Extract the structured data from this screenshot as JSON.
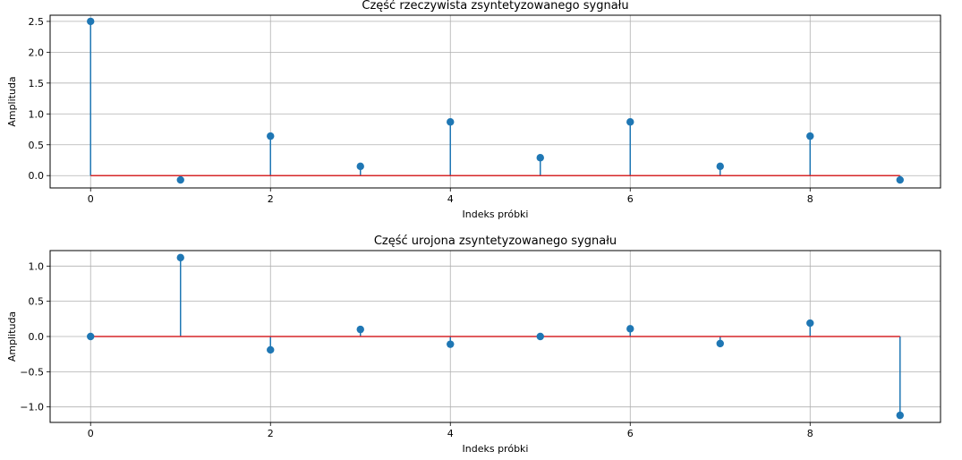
{
  "chart_data": [
    {
      "type": "stem",
      "title": "Część rzeczywista zsyntetyzowanego sygnału",
      "xlabel": "Indeks próbki",
      "ylabel": "Amplituda",
      "x": [
        0,
        1,
        2,
        3,
        4,
        5,
        6,
        7,
        8,
        9
      ],
      "values": [
        2.5,
        -0.07,
        0.64,
        0.15,
        0.87,
        0.29,
        0.87,
        0.15,
        0.64,
        -0.07
      ],
      "xlim": [
        -0.45,
        9.45
      ],
      "ylim": [
        -0.2,
        2.6
      ],
      "xticks": [
        0,
        2,
        4,
        6,
        8
      ],
      "xtick_labels": [
        "0",
        "2",
        "4",
        "6",
        "8"
      ],
      "yticks": [
        0.0,
        0.5,
        1.0,
        1.5,
        2.0,
        2.5
      ],
      "ytick_labels": [
        "0.0",
        "0.5",
        "1.0",
        "1.5",
        "2.0",
        "2.5"
      ],
      "grid": true,
      "colors": {
        "stem": "#1f77b4",
        "baseline": "#d62728"
      }
    },
    {
      "type": "stem",
      "title": "Część urojona zsyntetyzowanego sygnału",
      "xlabel": "Indeks próbki",
      "ylabel": "Amplituda",
      "x": [
        0,
        1,
        2,
        3,
        4,
        5,
        6,
        7,
        8,
        9
      ],
      "values": [
        0.0,
        1.12,
        -0.19,
        0.1,
        -0.11,
        0.0,
        0.11,
        -0.1,
        0.19,
        -1.12
      ],
      "xlim": [
        -0.45,
        9.45
      ],
      "ylim": [
        -1.22,
        1.22
      ],
      "xticks": [
        0,
        2,
        4,
        6,
        8
      ],
      "xtick_labels": [
        "0",
        "2",
        "4",
        "6",
        "8"
      ],
      "yticks": [
        -1.0,
        -0.5,
        0.0,
        0.5,
        1.0
      ],
      "ytick_labels": [
        "−1.0",
        "−0.5",
        "0.0",
        "0.5",
        "1.0"
      ],
      "grid": true,
      "colors": {
        "stem": "#1f77b4",
        "baseline": "#d62728"
      }
    }
  ]
}
